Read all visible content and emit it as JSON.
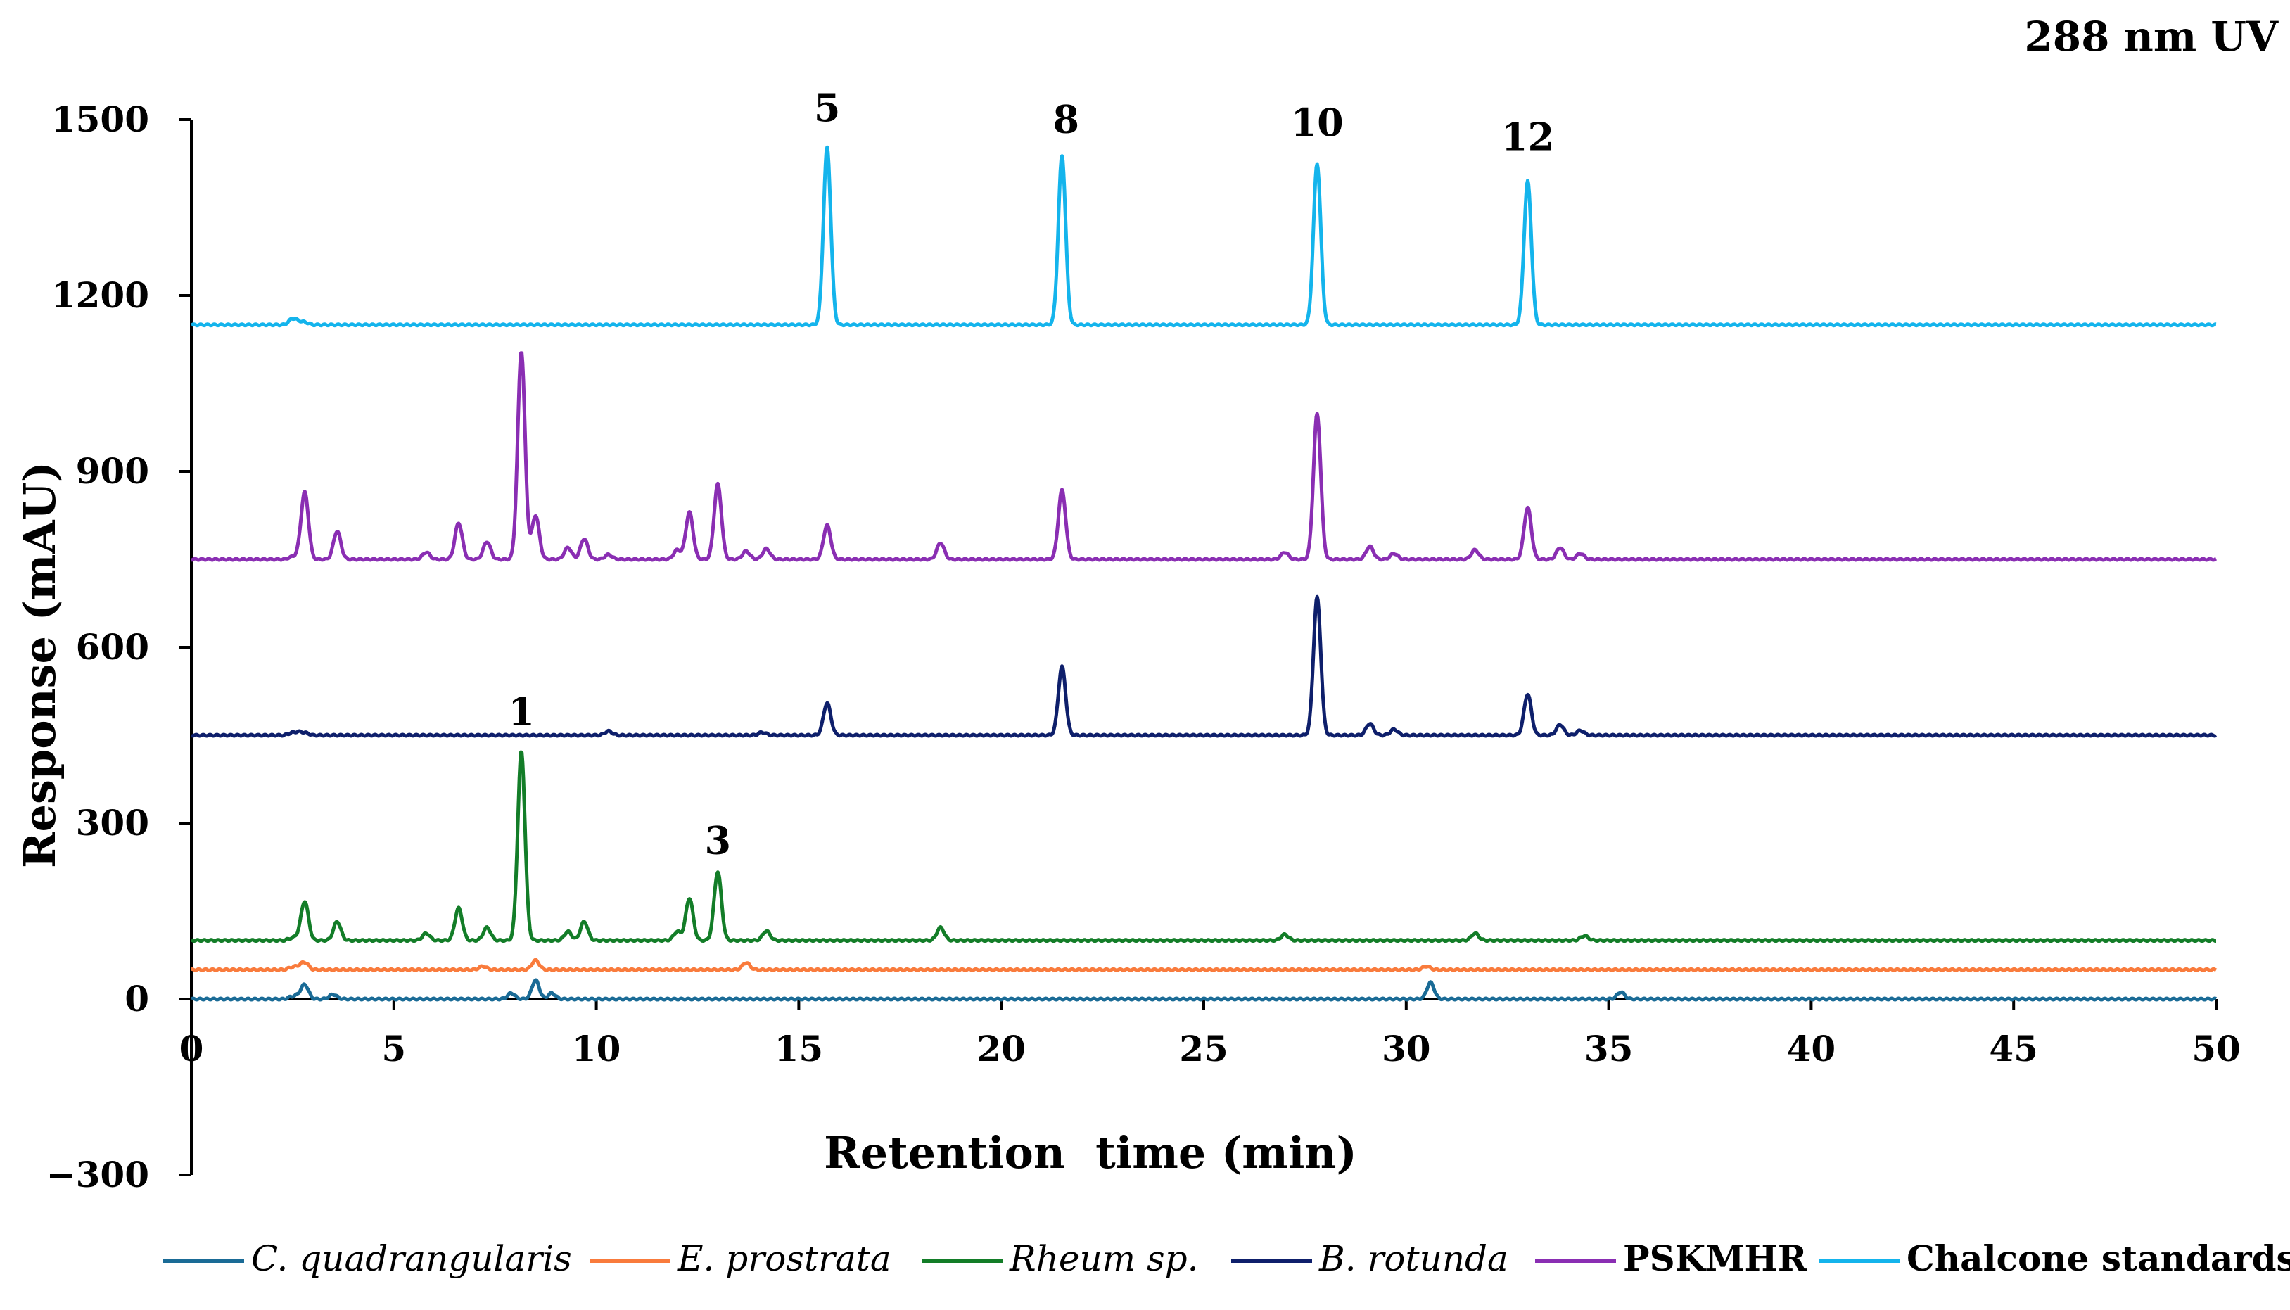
{
  "chart_data": {
    "type": "line",
    "title": "288 nm UV",
    "xlabel": "Retention  time (min)",
    "ylabel": "Response (mAU)",
    "xlim": [
      0,
      50
    ],
    "ylim": [
      -300,
      1500
    ],
    "x_ticks": [
      "0",
      "5",
      "10",
      "15",
      "20",
      "25",
      "30",
      "35",
      "40",
      "45",
      "50"
    ],
    "y_ticks": [
      "1500",
      "1200",
      "900",
      "600",
      "300",
      "0",
      "−300"
    ],
    "grid": false,
    "legend_position": "bottom",
    "series": [
      {
        "name": "C. quadrangularis",
        "color": "#1a6b96",
        "italic": true,
        "baseline": 0,
        "peaks": [
          [
            2.8,
            20
          ],
          [
            3.5,
            8
          ],
          [
            7.9,
            10
          ],
          [
            8.5,
            32
          ],
          [
            8.9,
            10
          ],
          [
            30.6,
            28
          ],
          [
            35.3,
            12
          ]
        ]
      },
      {
        "name": "E. prostrata",
        "color": "#f97b3c",
        "italic": true,
        "baseline": 50,
        "peaks": [
          [
            2.8,
            8
          ],
          [
            7.2,
            6
          ],
          [
            8.5,
            16
          ],
          [
            13.7,
            12
          ],
          [
            30.5,
            6
          ]
        ]
      },
      {
        "name": "Rheum sp.",
        "color": "#137d28",
        "italic": true,
        "baseline": 100,
        "peaks": [
          [
            2.8,
            62
          ],
          [
            3.6,
            32
          ],
          [
            5.8,
            12
          ],
          [
            6.6,
            55
          ],
          [
            7.3,
            22
          ],
          [
            8.15,
            322
          ],
          [
            9.3,
            15
          ],
          [
            9.7,
            32
          ],
          [
            12.0,
            15
          ],
          [
            12.3,
            72
          ],
          [
            13.0,
            117
          ],
          [
            14.2,
            16
          ],
          [
            18.5,
            22
          ],
          [
            27.0,
            10
          ],
          [
            31.7,
            12
          ],
          [
            34.4,
            8
          ]
        ]
      },
      {
        "name": "B. rotunda",
        "color": "#0e1f6b",
        "italic": true,
        "baseline": 450,
        "peaks": [
          [
            10.3,
            7
          ],
          [
            14.1,
            5
          ],
          [
            15.7,
            55
          ],
          [
            21.5,
            117
          ],
          [
            27.8,
            235
          ],
          [
            29.1,
            20
          ],
          [
            29.7,
            10
          ],
          [
            33.0,
            70
          ],
          [
            33.8,
            18
          ],
          [
            34.3,
            8
          ]
        ]
      },
      {
        "name": "PSKMHR",
        "color": "#8a2eb3",
        "italic": false,
        "baseline": 750,
        "peaks": [
          [
            2.8,
            110
          ],
          [
            3.6,
            48
          ],
          [
            5.8,
            12
          ],
          [
            6.6,
            62
          ],
          [
            7.3,
            30
          ],
          [
            8.15,
            355
          ],
          [
            8.5,
            75
          ],
          [
            9.3,
            20
          ],
          [
            9.7,
            35
          ],
          [
            10.3,
            8
          ],
          [
            12.0,
            16
          ],
          [
            12.3,
            80
          ],
          [
            13.0,
            128
          ],
          [
            13.7,
            14
          ],
          [
            14.2,
            18
          ],
          [
            15.7,
            58
          ],
          [
            18.5,
            28
          ],
          [
            21.5,
            118
          ],
          [
            27.0,
            12
          ],
          [
            27.8,
            248
          ],
          [
            29.1,
            22
          ],
          [
            29.7,
            10
          ],
          [
            31.7,
            16
          ],
          [
            33.0,
            88
          ],
          [
            33.8,
            20
          ],
          [
            34.3,
            10
          ]
        ]
      },
      {
        "name": "Chalcone standards",
        "color": "#14b4ec",
        "italic": false,
        "baseline": 1150,
        "peaks": [
          [
            2.5,
            6
          ],
          [
            15.7,
            302
          ],
          [
            21.5,
            288
          ],
          [
            27.8,
            275
          ],
          [
            33.0,
            245
          ]
        ]
      }
    ],
    "annotations": [
      {
        "label": "5",
        "x": 15.7,
        "y": 1500
      },
      {
        "label": "8",
        "x": 21.6,
        "y": 1480
      },
      {
        "label": "10",
        "x": 27.8,
        "y": 1475
      },
      {
        "label": "12",
        "x": 33.0,
        "y": 1450
      },
      {
        "label": "1",
        "x": 8.15,
        "y": 470
      },
      {
        "label": "3",
        "x": 13.0,
        "y": 250
      }
    ]
  }
}
